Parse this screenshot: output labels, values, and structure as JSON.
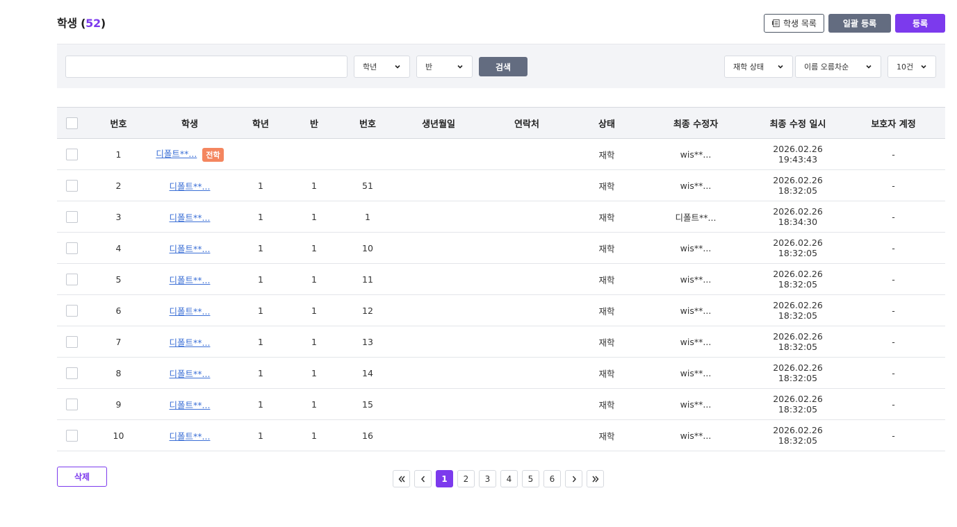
{
  "header": {
    "title": "학생",
    "count_open": "(",
    "count": "52",
    "count_close": ")",
    "buttons": {
      "student_list": "학생 목록",
      "bulk_register": "일괄 등록",
      "register": "등록"
    }
  },
  "filters": {
    "search_value": "",
    "grade": "학년",
    "class": "반",
    "search_button": "검색",
    "status": "재학 상태",
    "sort": "이름 오름차순",
    "page_size": "10건"
  },
  "table": {
    "columns": [
      "번호",
      "학생",
      "학년",
      "반",
      "번호",
      "생년월일",
      "연락처",
      "상태",
      "최종 수정자",
      "최종 수정 일시",
      "보호자 계정"
    ],
    "rows": [
      {
        "no": "1",
        "name": "디폴트**...",
        "badge": "전학",
        "grade": "",
        "class": "",
        "num": "",
        "birth": "",
        "contact": "",
        "status": "재학",
        "modifier": "wis**...",
        "modified": "2026.02.26 19:43:43",
        "guardian": "-"
      },
      {
        "no": "2",
        "name": "디폴트**...",
        "badge": "",
        "grade": "1",
        "class": "1",
        "num": "51",
        "birth": "",
        "contact": "",
        "status": "재학",
        "modifier": "wis**...",
        "modified": "2026.02.26 18:32:05",
        "guardian": "-"
      },
      {
        "no": "3",
        "name": "디폴트**...",
        "badge": "",
        "grade": "1",
        "class": "1",
        "num": "1",
        "birth": "",
        "contact": "",
        "status": "재학",
        "modifier": "디폴트**...",
        "modified": "2026.02.26 18:34:30",
        "guardian": "-"
      },
      {
        "no": "4",
        "name": "디폴트**...",
        "badge": "",
        "grade": "1",
        "class": "1",
        "num": "10",
        "birth": "",
        "contact": "",
        "status": "재학",
        "modifier": "wis**...",
        "modified": "2026.02.26 18:32:05",
        "guardian": "-"
      },
      {
        "no": "5",
        "name": "디폴트**...",
        "badge": "",
        "grade": "1",
        "class": "1",
        "num": "11",
        "birth": "",
        "contact": "",
        "status": "재학",
        "modifier": "wis**...",
        "modified": "2026.02.26 18:32:05",
        "guardian": "-"
      },
      {
        "no": "6",
        "name": "디폴트**...",
        "badge": "",
        "grade": "1",
        "class": "1",
        "num": "12",
        "birth": "",
        "contact": "",
        "status": "재학",
        "modifier": "wis**...",
        "modified": "2026.02.26 18:32:05",
        "guardian": "-"
      },
      {
        "no": "7",
        "name": "디폴트**...",
        "badge": "",
        "grade": "1",
        "class": "1",
        "num": "13",
        "birth": "",
        "contact": "",
        "status": "재학",
        "modifier": "wis**...",
        "modified": "2026.02.26 18:32:05",
        "guardian": "-"
      },
      {
        "no": "8",
        "name": "디폴트**...",
        "badge": "",
        "grade": "1",
        "class": "1",
        "num": "14",
        "birth": "",
        "contact": "",
        "status": "재학",
        "modifier": "wis**...",
        "modified": "2026.02.26 18:32:05",
        "guardian": "-"
      },
      {
        "no": "9",
        "name": "디폴트**...",
        "badge": "",
        "grade": "1",
        "class": "1",
        "num": "15",
        "birth": "",
        "contact": "",
        "status": "재학",
        "modifier": "wis**...",
        "modified": "2026.02.26 18:32:05",
        "guardian": "-"
      },
      {
        "no": "10",
        "name": "디폴트**...",
        "badge": "",
        "grade": "1",
        "class": "1",
        "num": "16",
        "birth": "",
        "contact": "",
        "status": "재학",
        "modifier": "wis**...",
        "modified": "2026.02.26 18:32:05",
        "guardian": "-"
      }
    ]
  },
  "footer": {
    "delete_button": "삭제",
    "pages": [
      "1",
      "2",
      "3",
      "4",
      "5",
      "6"
    ],
    "current_page": "1"
  },
  "colors": {
    "accent": "#7c3aed",
    "secondary": "#636c80",
    "badge": "#f4865f",
    "link": "#3b6fd6"
  },
  "icons": {
    "student_list": "document-list-icon",
    "select": "chevron-down-icon",
    "first": "double-chevron-left-icon",
    "prev": "chevron-left-icon",
    "next": "chevron-right-icon",
    "last": "double-chevron-right-icon"
  }
}
